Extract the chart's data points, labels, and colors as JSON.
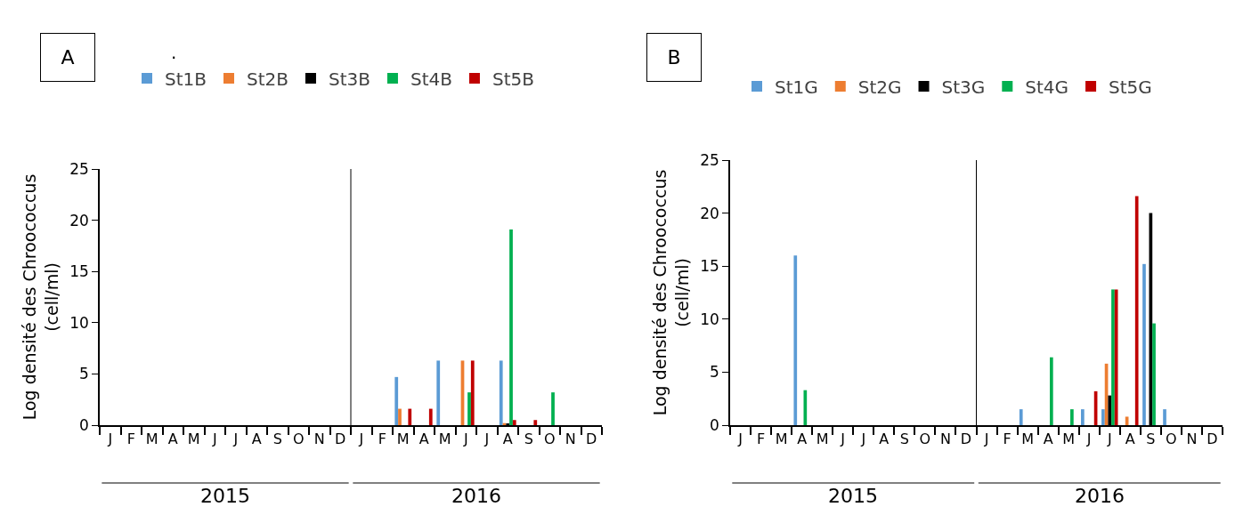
{
  "chart_data": [
    {
      "type": "bar",
      "title": "A",
      "annotations": [
        ".",
        "2015",
        "2016"
      ],
      "ylabel": "Log densité des Chroococcus (cell/ml)",
      "categories": [
        "J",
        "F",
        "M",
        "A",
        "M",
        "J",
        "J",
        "A",
        "S",
        "O",
        "N",
        "D",
        "J",
        "F",
        "M",
        "A",
        "M",
        "J",
        "J",
        "A",
        "S",
        "O",
        "N",
        "D"
      ],
      "series": [
        {
          "name": "St1B",
          "color": "#5b9bd5",
          "values": [
            0,
            0,
            0,
            0,
            0,
            0,
            0,
            0,
            0,
            0,
            0,
            0,
            0,
            0,
            4.7,
            0,
            6.3,
            0,
            0,
            6.3,
            0,
            0,
            0,
            0
          ]
        },
        {
          "name": "St2B",
          "color": "#ed7d31",
          "values": [
            0,
            0,
            0,
            0,
            0,
            0,
            0,
            0,
            0,
            0,
            0,
            0,
            0,
            0,
            1.6,
            0,
            0,
            6.3,
            0,
            0.2,
            0,
            0,
            0,
            0
          ]
        },
        {
          "name": "St3B",
          "color": "#000000",
          "values": [
            0,
            0,
            0,
            0,
            0,
            0,
            0,
            0,
            0,
            0,
            0,
            0,
            0,
            0,
            0,
            0,
            0,
            0,
            0,
            0.1,
            0,
            0,
            0,
            0
          ]
        },
        {
          "name": "St4B",
          "color": "#00b050",
          "values": [
            0,
            0,
            0,
            0,
            0,
            0,
            0,
            0,
            0,
            0,
            0,
            0,
            0,
            0,
            0,
            0,
            0,
            3.2,
            0,
            19.1,
            0,
            3.2,
            0,
            0
          ]
        },
        {
          "name": "St5B",
          "color": "#c00000",
          "values": [
            0,
            0,
            0,
            0,
            0,
            0,
            0,
            0,
            0,
            0,
            0,
            0,
            0,
            0,
            1.6,
            1.6,
            0,
            6.3,
            0,
            0.5,
            0.5,
            0,
            0,
            0
          ]
        }
      ],
      "ylim": [
        0,
        25
      ],
      "yticks": [
        0,
        5,
        10,
        15,
        20,
        25
      ],
      "legend": "top"
    },
    {
      "type": "bar",
      "title": "B",
      "annotations": [
        "2015",
        "2016"
      ],
      "ylabel": "Log densité des Chroococcus (cell/ml)",
      "categories": [
        "J",
        "F",
        "M",
        "A",
        "M",
        "J",
        "J",
        "A",
        "S",
        "O",
        "N",
        "D",
        "J",
        "F",
        "M",
        "A",
        "M",
        "J",
        "J",
        "A",
        "S",
        "O",
        "N",
        "D"
      ],
      "series": [
        {
          "name": "St1G",
          "color": "#5b9bd5",
          "values": [
            0,
            0,
            0,
            16.0,
            0,
            0,
            0,
            0,
            0,
            0,
            0,
            0,
            0,
            0,
            1.5,
            0,
            0,
            1.5,
            1.5,
            0,
            15.2,
            1.5,
            0,
            0
          ]
        },
        {
          "name": "St2G",
          "color": "#ed7d31",
          "values": [
            0,
            0,
            0,
            0,
            0,
            0,
            0,
            0,
            0,
            0,
            0,
            0,
            0,
            0,
            0,
            0,
            0,
            0,
            5.8,
            0.8,
            0,
            0,
            0,
            0
          ]
        },
        {
          "name": "St3G",
          "color": "#000000",
          "values": [
            0,
            0,
            0,
            0,
            0,
            0,
            0,
            0,
            0,
            0,
            0,
            0,
            0,
            0,
            0,
            0,
            0,
            0,
            2.8,
            0,
            20.0,
            0,
            0,
            0
          ]
        },
        {
          "name": "St4G",
          "color": "#00b050",
          "values": [
            0,
            0,
            0,
            3.3,
            0,
            0,
            0,
            0,
            0,
            0,
            0,
            0,
            0,
            0,
            0,
            6.4,
            1.5,
            0,
            12.8,
            0,
            9.6,
            0,
            0,
            0
          ]
        },
        {
          "name": "St5G",
          "color": "#c00000",
          "values": [
            0,
            0,
            0,
            0,
            0,
            0,
            0,
            0,
            0,
            0,
            0,
            0,
            0,
            0,
            0,
            0,
            0,
            3.2,
            12.8,
            21.6,
            0,
            0,
            0,
            0
          ]
        }
      ],
      "ylim": [
        0,
        25
      ],
      "yticks": [
        0,
        5,
        10,
        15,
        20,
        25
      ],
      "legend": "top"
    }
  ]
}
